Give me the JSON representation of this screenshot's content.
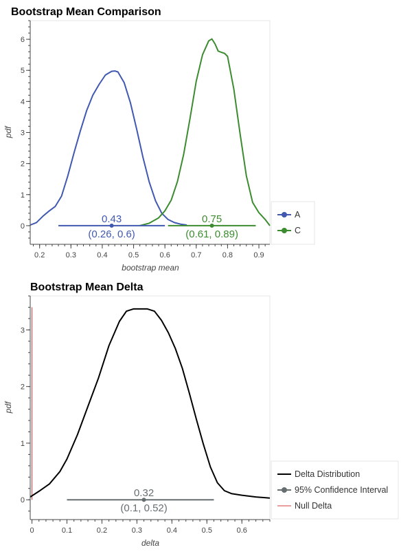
{
  "chart_data": [
    {
      "type": "line",
      "title": "Bootstrap Mean Comparison",
      "xlabel": "bootstrap mean",
      "ylabel": "pdf",
      "xlim": [
        0.17,
        0.935
      ],
      "ylim": [
        -0.6,
        6.6
      ],
      "x_ticks": [
        "0.2",
        "0.3",
        "0.4",
        "0.5",
        "0.6",
        "0.7",
        "0.8",
        "0.9"
      ],
      "y_ticks": [
        "0",
        "1",
        "2",
        "3",
        "4",
        "5",
        "6"
      ],
      "grid": false,
      "legend_position": "bottom-right outside",
      "series": [
        {
          "name": "A",
          "color": "#4058b0",
          "x": [
            0.17,
            0.19,
            0.21,
            0.23,
            0.25,
            0.27,
            0.29,
            0.31,
            0.33,
            0.35,
            0.37,
            0.39,
            0.41,
            0.43,
            0.44,
            0.45,
            0.47,
            0.49,
            0.51,
            0.53,
            0.55,
            0.57,
            0.59,
            0.61,
            0.63,
            0.65,
            0.67
          ],
          "y": [
            0.02,
            0.1,
            0.3,
            0.47,
            0.62,
            0.95,
            1.6,
            2.35,
            3.05,
            3.7,
            4.2,
            4.55,
            4.85,
            4.97,
            4.98,
            4.95,
            4.6,
            3.95,
            3.1,
            2.2,
            1.4,
            0.8,
            0.4,
            0.2,
            0.1,
            0.05,
            0.02
          ],
          "mean": 0.43,
          "mean_label": "0.43",
          "ci": [
            0.26,
            0.6
          ],
          "ci_label": "(0.26, 0.6)"
        },
        {
          "name": "C",
          "color": "#3b8c2e",
          "x": [
            0.52,
            0.55,
            0.58,
            0.6,
            0.62,
            0.64,
            0.66,
            0.68,
            0.7,
            0.72,
            0.74,
            0.75,
            0.76,
            0.77,
            0.78,
            0.79,
            0.8,
            0.82,
            0.84,
            0.86,
            0.88,
            0.9,
            0.92,
            0.935
          ],
          "y": [
            0.0,
            0.08,
            0.25,
            0.48,
            0.82,
            1.42,
            2.3,
            3.45,
            4.65,
            5.5,
            5.95,
            6.01,
            5.85,
            5.62,
            5.58,
            5.55,
            5.45,
            4.4,
            2.95,
            1.6,
            0.75,
            0.42,
            0.2,
            0.0
          ],
          "mean": 0.75,
          "mean_label": "0.75",
          "ci": [
            0.61,
            0.89
          ],
          "ci_label": "(0.61, 0.89)"
        }
      ]
    },
    {
      "type": "line",
      "title": "Bootstrap Mean Delta",
      "xlabel": "delta",
      "ylabel": "pdf",
      "xlim": [
        -0.005,
        0.68
      ],
      "ylim": [
        -0.35,
        3.6
      ],
      "x_ticks": [
        "0",
        "0.1",
        "0.2",
        "0.3",
        "0.4",
        "0.5",
        "0.6"
      ],
      "y_ticks": [
        "0",
        "1",
        "2",
        "3"
      ],
      "grid": false,
      "legend_position": "bottom-right outside",
      "series": [
        {
          "name": "Delta Distribution",
          "color": "#000000",
          "x": [
            -0.005,
            0.02,
            0.05,
            0.08,
            0.1,
            0.13,
            0.16,
            0.19,
            0.22,
            0.25,
            0.27,
            0.29,
            0.31,
            0.33,
            0.35,
            0.37,
            0.39,
            0.41,
            0.43,
            0.45,
            0.47,
            0.49,
            0.51,
            0.53,
            0.55,
            0.57,
            0.6,
            0.64,
            0.68
          ],
          "y": [
            0.05,
            0.15,
            0.28,
            0.5,
            0.72,
            1.15,
            1.65,
            2.15,
            2.72,
            3.15,
            3.33,
            3.37,
            3.37,
            3.37,
            3.33,
            3.17,
            2.95,
            2.67,
            2.32,
            1.88,
            1.42,
            0.98,
            0.58,
            0.3,
            0.16,
            0.11,
            0.08,
            0.05,
            0.03
          ]
        },
        {
          "name": "95% Confidence Interval",
          "color": "#666e70",
          "mean": 0.32,
          "mean_label": "0.32",
          "ci": [
            0.1,
            0.52
          ],
          "ci_label": "(0.1, 0.52)"
        },
        {
          "name": "Null Delta",
          "color": "#d33c3c",
          "x": [
            0,
            0
          ],
          "y": [
            0,
            3.4
          ]
        }
      ]
    }
  ]
}
